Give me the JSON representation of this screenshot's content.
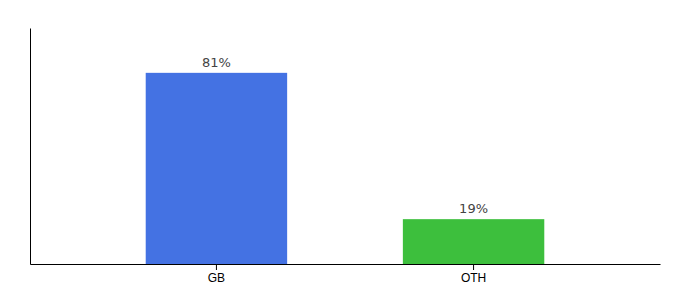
{
  "chart_data": {
    "type": "bar",
    "categories": [
      "GB",
      "OTH"
    ],
    "values": [
      81,
      19
    ],
    "value_labels": [
      "81%",
      "19%"
    ],
    "colors": [
      "#4472e3",
      "#3dbf3d"
    ],
    "ylim": [
      0,
      100
    ],
    "data_labels": true,
    "tick_labels": "x",
    "grid": false
  }
}
